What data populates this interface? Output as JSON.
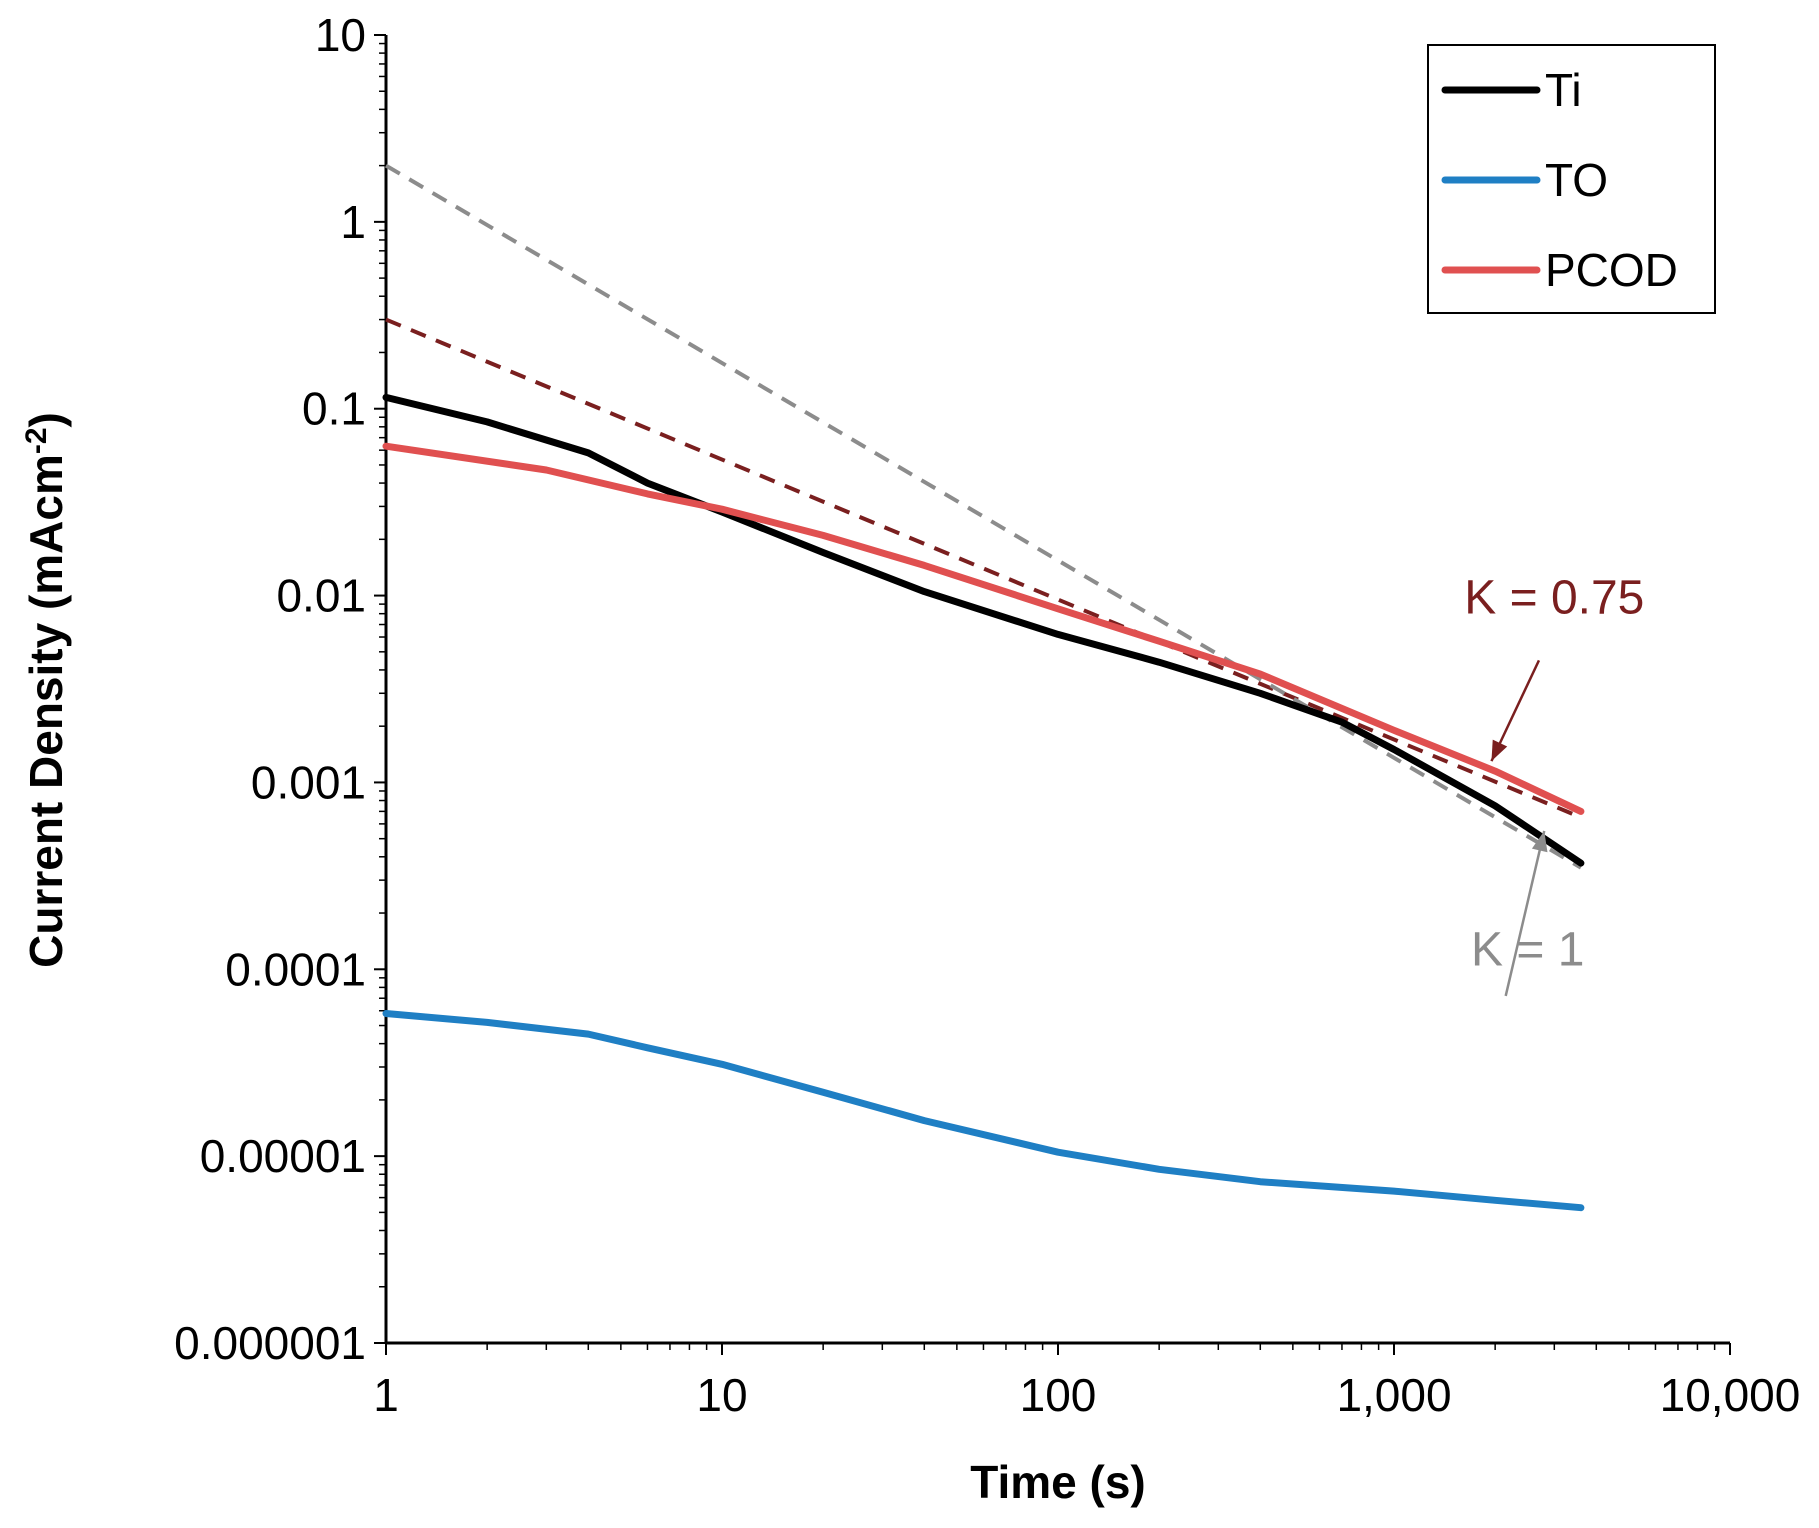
{
  "chart_data": {
    "type": "line",
    "xscale": "log",
    "yscale": "log",
    "xlabel": "Time (s)",
    "ylabel_main": "Current Density (mAcm",
    "ylabel_sup": "-2",
    "ylabel_end": ")",
    "xlim": [
      1,
      10000
    ],
    "ylim": [
      1e-06,
      10
    ],
    "x_ticks": [
      1,
      10,
      100,
      1000,
      10000
    ],
    "x_tick_labels": [
      "1",
      "10",
      "100",
      "1,000",
      "10,000"
    ],
    "y_ticks": [
      10,
      1,
      0.1,
      0.01,
      0.001,
      0.0001,
      1e-05,
      1e-06
    ],
    "y_tick_labels": [
      "10",
      "1",
      "0.1",
      "0.01",
      "0.001",
      "0.0001",
      "0.00001",
      "0.000001"
    ],
    "grid": false,
    "legend_position": "top-right",
    "series": [
      {
        "name": "Ti",
        "color": "#000000",
        "x": [
          1,
          2,
          4,
          6,
          10,
          20,
          40,
          100,
          200,
          400,
          700,
          1000,
          2000,
          3600
        ],
        "y": [
          0.115,
          0.085,
          0.058,
          0.04,
          0.028,
          0.017,
          0.0105,
          0.0062,
          0.0044,
          0.003,
          0.0021,
          0.0015,
          0.00075,
          0.00037
        ]
      },
      {
        "name": "TO",
        "color": "#1f7fc4",
        "x": [
          1,
          2,
          4,
          6,
          10,
          20,
          40,
          100,
          200,
          400,
          1000,
          2000,
          3600
        ],
        "y": [
          5.8e-05,
          5.2e-05,
          4.5e-05,
          3.8e-05,
          3.1e-05,
          2.2e-05,
          1.55e-05,
          1.05e-05,
          8.5e-06,
          7.3e-06,
          6.5e-06,
          5.8e-06,
          5.3e-06
        ]
      },
      {
        "name": "PCOD",
        "color": "#e05050",
        "x": [
          1,
          3,
          6,
          10,
          20,
          40,
          100,
          200,
          400,
          1000,
          2000,
          3600
        ],
        "y": [
          0.063,
          0.047,
          0.035,
          0.029,
          0.021,
          0.0145,
          0.0085,
          0.0057,
          0.0038,
          0.0019,
          0.00115,
          0.0007
        ]
      }
    ],
    "fit_lines": [
      {
        "name": "K = 0.75",
        "color": "#7a1f1f",
        "dash": "dashed",
        "x": [
          1,
          3600
        ],
        "y": [
          0.3,
          0.00065
        ]
      },
      {
        "name": "K = 1",
        "color": "#8c8c8c",
        "dash": "dashed",
        "x": [
          1,
          3600
        ],
        "y": [
          2.0,
          0.00035
        ]
      }
    ],
    "annotations": [
      {
        "text": "K = 0.75",
        "color": "#7a1f1f",
        "label_pos": [
          3000,
          0.008
        ],
        "arrow_from": [
          2700,
          0.0045
        ],
        "arrow_to": [
          1950,
          0.0013
        ]
      },
      {
        "text": "K = 1",
        "color": "#8c8c8c",
        "label_pos": [
          2500,
          0.000105
        ],
        "arrow_from": [
          2150,
          7.2e-05
        ],
        "arrow_to": [
          2800,
          0.00055
        ]
      }
    ]
  }
}
